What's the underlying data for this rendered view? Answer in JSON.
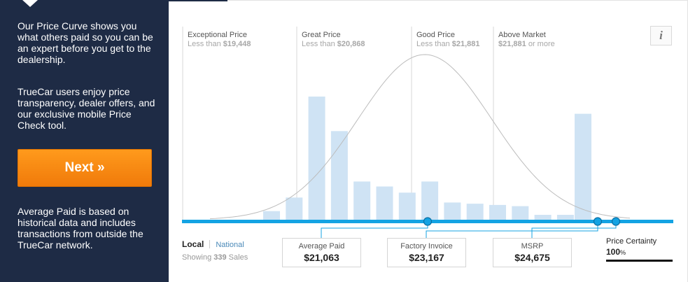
{
  "sidebar": {
    "intro": "Our Price Curve shows you what others paid so you can be an expert before you get to the dealership.",
    "features": "TrueCar users enjoy price transparency, dealer offers, and our exclusive mobile Price Check tool.",
    "next_label": "Next »",
    "note": "Average Paid is based on historical data and includes transactions from outside the TrueCar network."
  },
  "info_label": "i",
  "zones": [
    {
      "title": "Exceptional Price",
      "prefix": "Less than ",
      "amount": "$19,448",
      "suffix": ""
    },
    {
      "title": "Great Price",
      "prefix": "Less than ",
      "amount": "$20,868",
      "suffix": ""
    },
    {
      "title": "Good Price",
      "prefix": "Less than ",
      "amount": "$21,881",
      "suffix": ""
    },
    {
      "title": "Above Market",
      "prefix": "",
      "amount": "$21,881",
      "suffix": " or more"
    }
  ],
  "tabs": {
    "local": "Local",
    "national": "National"
  },
  "sales": {
    "prefix": "Showing ",
    "count": "339",
    "suffix": " Sales"
  },
  "prices": [
    {
      "label": "Average Paid",
      "value": "$21,063"
    },
    {
      "label": "Factory Invoice",
      "value": "$23,167"
    },
    {
      "label": "MSRP",
      "value": "$24,675"
    }
  ],
  "certainty": {
    "label": "Price Certainty",
    "value": "100",
    "unit": "%"
  },
  "chart_data": {
    "type": "bar",
    "description_of_values": "relative transaction frequency per price bucket",
    "values": [
      7,
      18,
      100,
      72,
      31,
      27,
      22,
      31,
      14,
      13,
      12,
      11,
      4,
      4,
      86
    ],
    "ylim": [
      0,
      100
    ],
    "curve": "normal distribution overlay",
    "markers": [
      "Average Paid",
      "Factory Invoice",
      "MSRP"
    ],
    "colors": {
      "bar": "#cfe3f4",
      "baseline": "#14a3e3",
      "curve": "#bcbcbc",
      "divider": "#d7d7d7"
    }
  }
}
